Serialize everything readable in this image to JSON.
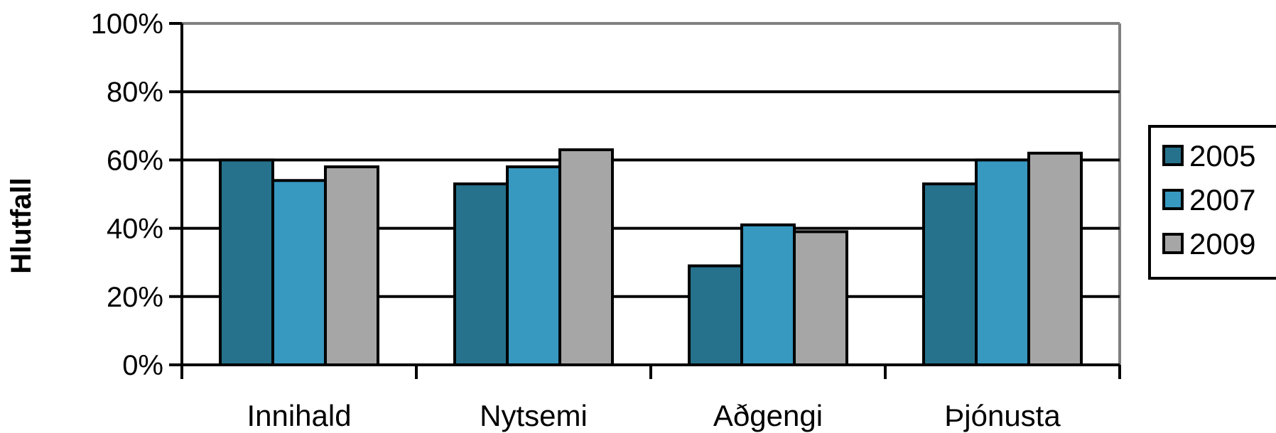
{
  "chart_data": {
    "type": "bar",
    "title": "",
    "xlabel": "",
    "ylabel": "Hlutfall",
    "ylim": [
      0,
      100
    ],
    "yticks": [
      "0%",
      "20%",
      "40%",
      "60%",
      "80%",
      "100%"
    ],
    "ytick_values": [
      0,
      20,
      40,
      60,
      80,
      100
    ],
    "grid": true,
    "legend_position": "right",
    "categories": [
      "Innihald",
      "Nytsemi",
      "Aðgengi",
      "Þjónusta"
    ],
    "series": [
      {
        "name": "2005",
        "color": "#26728c",
        "values": [
          60,
          53,
          29,
          53
        ]
      },
      {
        "name": "2007",
        "color": "#3798c0",
        "values": [
          54,
          58,
          41,
          60
        ]
      },
      {
        "name": "2009",
        "color": "#a6a6a6",
        "values": [
          58,
          63,
          39,
          62
        ]
      }
    ]
  }
}
